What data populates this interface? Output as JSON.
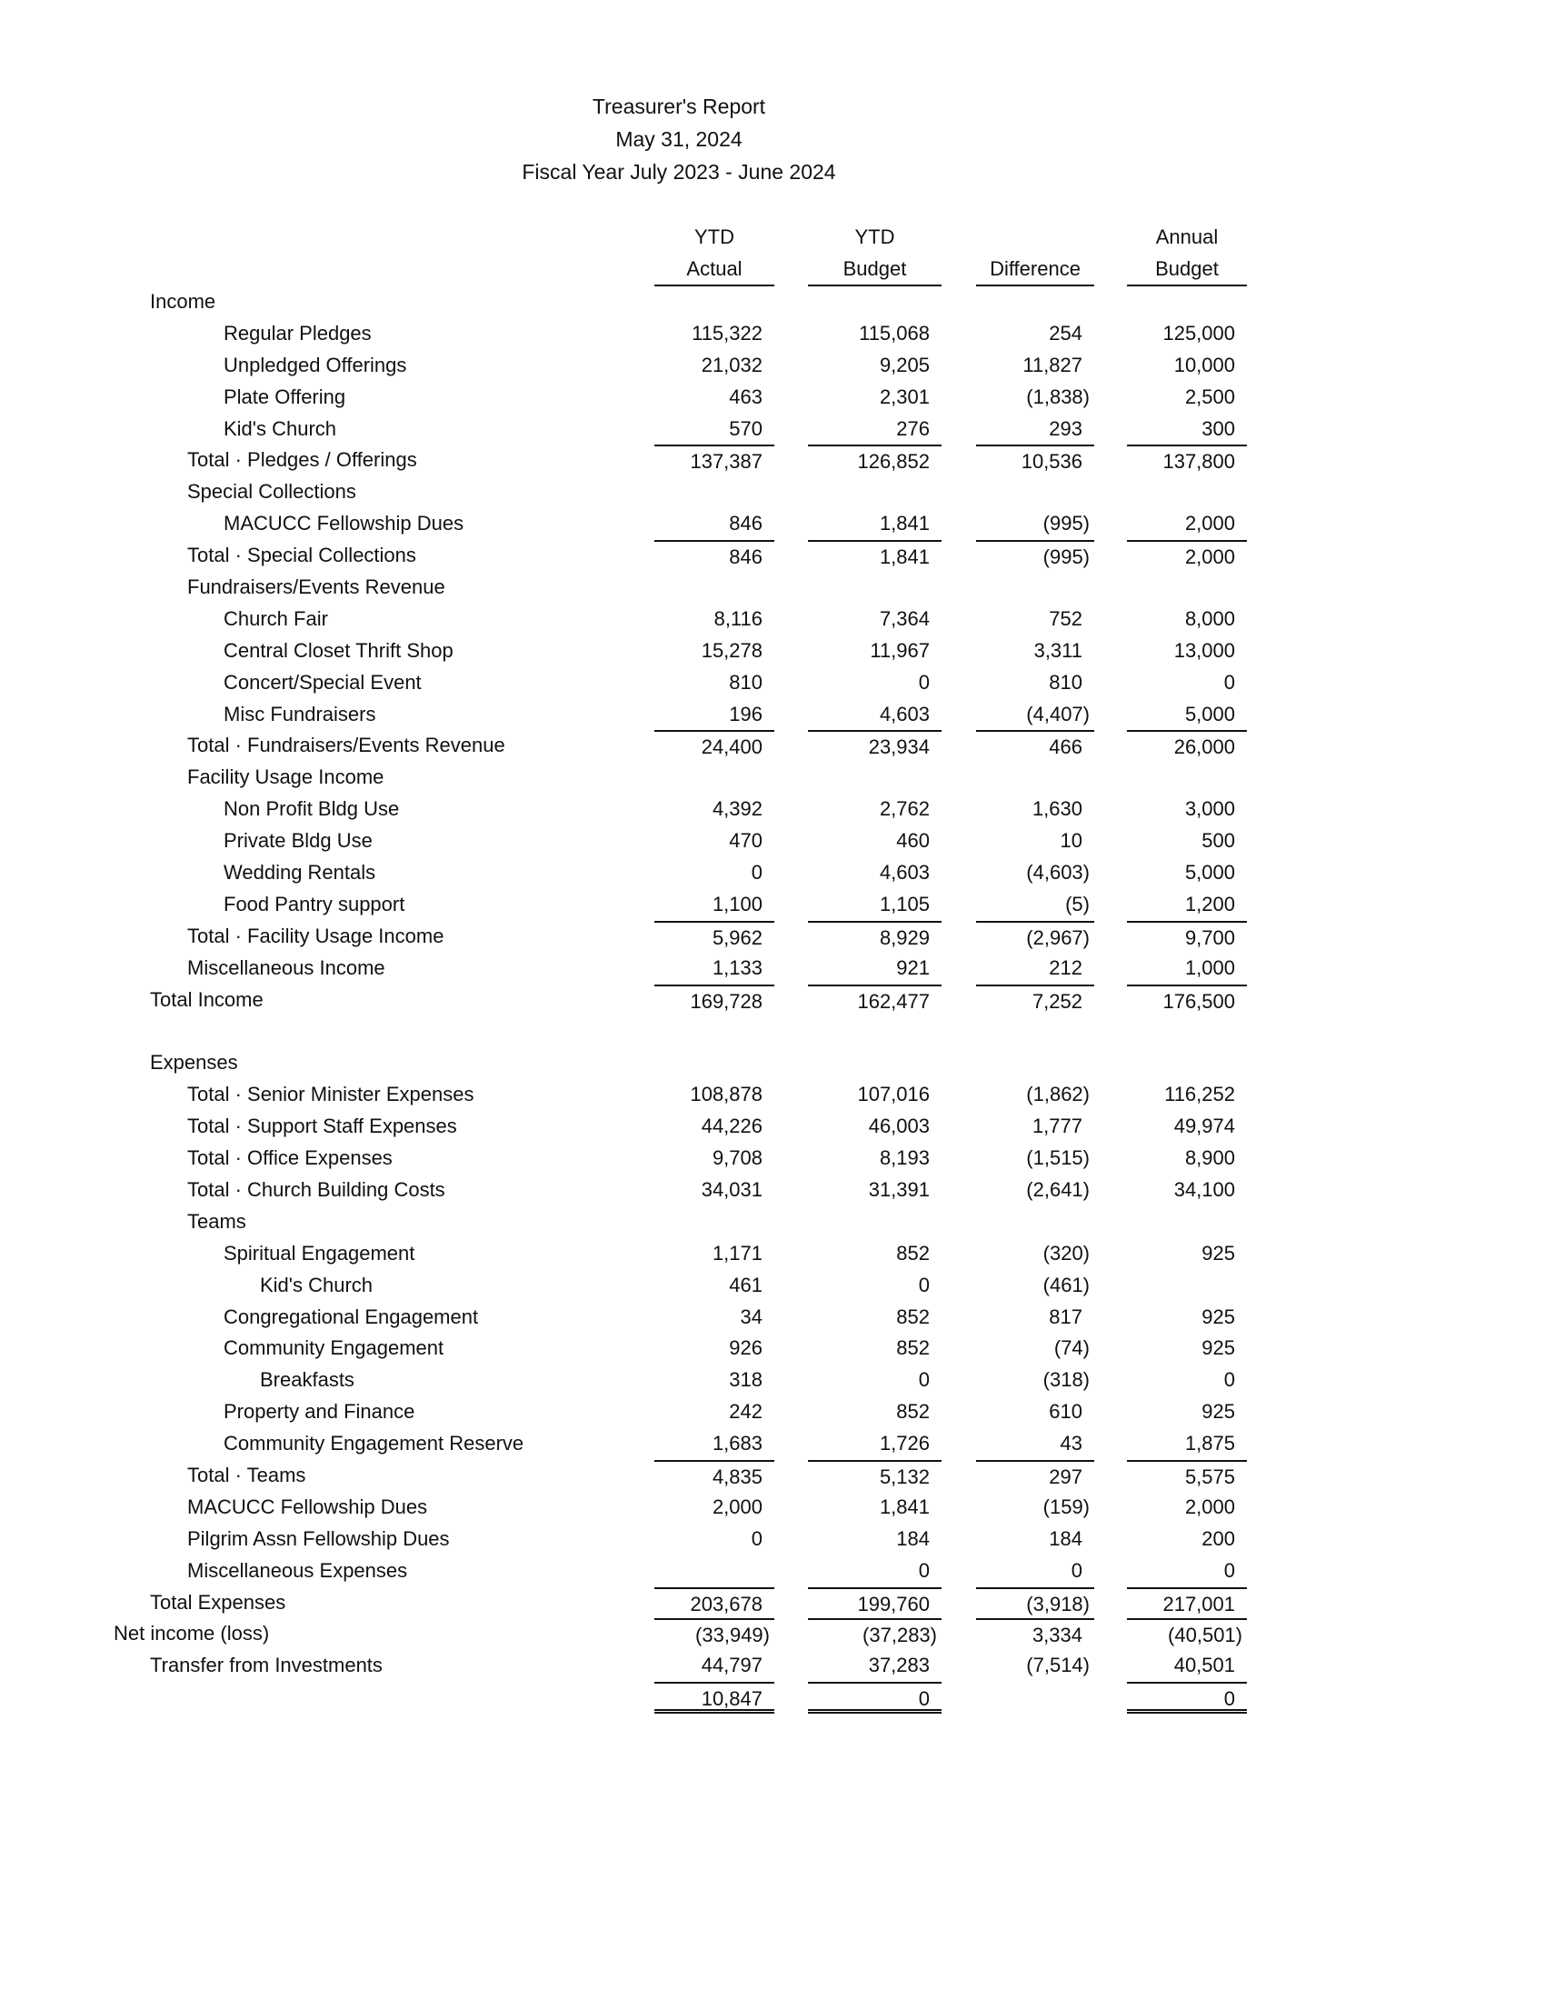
{
  "title": {
    "line1": "Treasurer's Report",
    "line2": "May 31, 2024",
    "line3": "Fiscal Year July 2023 - June 2024"
  },
  "columns": [
    {
      "top": "YTD",
      "bottom": "Actual"
    },
    {
      "top": "YTD",
      "bottom": "Budget"
    },
    {
      "top": "",
      "bottom": "Difference"
    },
    {
      "top": "Annual",
      "bottom": "Budget"
    }
  ],
  "rows": [
    {
      "label": "Income",
      "level": 1,
      "values": [
        "",
        "",
        "",
        ""
      ]
    },
    {
      "label": "Regular Pledges",
      "level": 3,
      "values": [
        "115,322",
        "115,068",
        "254",
        "125,000"
      ]
    },
    {
      "label": "Unpledged Offerings",
      "level": 3,
      "values": [
        "21,032",
        "9,205",
        "11,827",
        "10,000"
      ]
    },
    {
      "label": "Plate Offering",
      "level": 3,
      "values": [
        "463",
        "2,301",
        "(1,838)",
        "2,500"
      ]
    },
    {
      "label": "Kid's Church",
      "level": 3,
      "values": [
        "570",
        "276",
        "293",
        "300"
      ]
    },
    {
      "label": "Total · Pledges / Offerings",
      "level": 2,
      "values": [
        "137,387",
        "126,852",
        "10,536",
        "137,800"
      ],
      "rule_above": [
        true,
        true,
        true,
        true
      ]
    },
    {
      "label": "Special Collections",
      "level": 2,
      "values": [
        "",
        "",
        "",
        ""
      ]
    },
    {
      "label": "MACUCC Fellowship Dues",
      "level": 3,
      "values": [
        "846",
        "1,841",
        "(995)",
        "2,000"
      ]
    },
    {
      "label": "Total · Special Collections",
      "level": 2,
      "values": [
        "846",
        "1,841",
        "(995)",
        "2,000"
      ],
      "rule_above": [
        true,
        true,
        true,
        true
      ]
    },
    {
      "label": "Fundraisers/Events Revenue",
      "level": 2,
      "values": [
        "",
        "",
        "",
        ""
      ]
    },
    {
      "label": "Church Fair",
      "level": 3,
      "values": [
        "8,116",
        "7,364",
        "752",
        "8,000"
      ]
    },
    {
      "label": "Central Closet Thrift Shop",
      "level": 3,
      "values": [
        "15,278",
        "11,967",
        "3,311",
        "13,000"
      ]
    },
    {
      "label": "Concert/Special Event",
      "level": 3,
      "values": [
        "810",
        "0",
        "810",
        "0"
      ]
    },
    {
      "label": "Misc Fundraisers",
      "level": 3,
      "values": [
        "196",
        "4,603",
        "(4,407)",
        "5,000"
      ]
    },
    {
      "label": "Total · Fundraisers/Events Revenue",
      "level": 2,
      "values": [
        "24,400",
        "23,934",
        "466",
        "26,000"
      ],
      "rule_above": [
        true,
        true,
        true,
        true
      ]
    },
    {
      "label": "Facility Usage Income",
      "level": 2,
      "values": [
        "",
        "",
        "",
        ""
      ]
    },
    {
      "label": "Non Profit Bldg Use",
      "level": 3,
      "values": [
        "4,392",
        "2,762",
        "1,630",
        "3,000"
      ]
    },
    {
      "label": "Private Bldg Use",
      "level": 3,
      "values": [
        "470",
        "460",
        "10",
        "500"
      ]
    },
    {
      "label": "Wedding Rentals",
      "level": 3,
      "values": [
        "0",
        "4,603",
        "(4,603)",
        "5,000"
      ]
    },
    {
      "label": "Food Pantry support",
      "level": 3,
      "values": [
        "1,100",
        "1,105",
        "(5)",
        "1,200"
      ]
    },
    {
      "label": "Total · Facility Usage Income",
      "level": 2,
      "values": [
        "5,962",
        "8,929",
        "(2,967)",
        "9,700"
      ],
      "rule_above": [
        true,
        true,
        true,
        true
      ]
    },
    {
      "label": "Miscellaneous Income",
      "level": 2,
      "values": [
        "1,133",
        "921",
        "212",
        "1,000"
      ]
    },
    {
      "label": "Total Income",
      "level": 1,
      "values": [
        "169,728",
        "162,477",
        "7,252",
        "176,500"
      ],
      "rule_above": [
        true,
        true,
        true,
        true
      ]
    },
    {
      "label": "",
      "level": 1,
      "values": [
        "",
        "",
        "",
        ""
      ]
    },
    {
      "label": "Expenses",
      "level": 1,
      "values": [
        "",
        "",
        "",
        ""
      ]
    },
    {
      "label": "Total · Senior Minister Expenses",
      "level": 2,
      "values": [
        "108,878",
        "107,016",
        "(1,862)",
        "116,252"
      ]
    },
    {
      "label": "Total · Support Staff Expenses",
      "level": 2,
      "values": [
        "44,226",
        "46,003",
        "1,777",
        "49,974"
      ]
    },
    {
      "label": "Total · Office Expenses",
      "level": 2,
      "values": [
        "9,708",
        "8,193",
        "(1,515)",
        "8,900"
      ]
    },
    {
      "label": "Total · Church Building Costs",
      "level": 2,
      "values": [
        "34,031",
        "31,391",
        "(2,641)",
        "34,100"
      ]
    },
    {
      "label": "Teams",
      "level": 2,
      "values": [
        "",
        "",
        "",
        ""
      ]
    },
    {
      "label": "Spiritual Engagement",
      "level": 3,
      "values": [
        "1,171",
        "852",
        "(320)",
        "925"
      ]
    },
    {
      "label": "Kid's Church",
      "level": 4,
      "values": [
        "461",
        "0",
        "(461)",
        ""
      ]
    },
    {
      "label": "Congregational Engagement",
      "level": 3,
      "values": [
        "34",
        "852",
        "817",
        "925"
      ]
    },
    {
      "label": "Community Engagement",
      "level": 3,
      "values": [
        "926",
        "852",
        "(74)",
        "925"
      ]
    },
    {
      "label": "Breakfasts",
      "level": 4,
      "values": [
        "318",
        "0",
        "(318)",
        "0"
      ]
    },
    {
      "label": "Property and Finance",
      "level": 3,
      "values": [
        "242",
        "852",
        "610",
        "925"
      ]
    },
    {
      "label": "Community Engagement Reserve",
      "level": 3,
      "values": [
        "1,683",
        "1,726",
        "43",
        "1,875"
      ]
    },
    {
      "label": "Total · Teams",
      "level": 2,
      "values": [
        "4,835",
        "5,132",
        "297",
        "5,575"
      ],
      "rule_above": [
        true,
        true,
        true,
        true
      ]
    },
    {
      "label": "MACUCC Fellowship Dues",
      "level": 2,
      "values": [
        "2,000",
        "1,841",
        "(159)",
        "2,000"
      ]
    },
    {
      "label": "Pilgrim Assn Fellowship Dues",
      "level": 2,
      "values": [
        "0",
        "184",
        "184",
        "200"
      ]
    },
    {
      "label": "Miscellaneous Expenses",
      "level": 2,
      "values": [
        "",
        "0",
        "0",
        "0"
      ]
    },
    {
      "label": "Total Expenses",
      "level": 1,
      "values": [
        "203,678",
        "199,760",
        "(3,918)",
        "217,001"
      ],
      "rule_above": [
        true,
        true,
        true,
        true
      ]
    },
    {
      "label": "Net income (loss)",
      "level": 0,
      "values": [
        "(33,949)",
        "(37,283)",
        "3,334",
        "(40,501)"
      ],
      "rule_above": [
        true,
        true,
        true,
        true
      ]
    },
    {
      "label": "Transfer from Investments",
      "level": 1,
      "values": [
        "44,797",
        "37,283",
        "(7,514)",
        "40,501"
      ]
    },
    {
      "label": "",
      "level": 1,
      "values": [
        "10,847",
        "0",
        "",
        "0"
      ],
      "rule_above": [
        true,
        true,
        false,
        true
      ],
      "double_below": [
        true,
        true,
        false,
        true
      ]
    }
  ]
}
